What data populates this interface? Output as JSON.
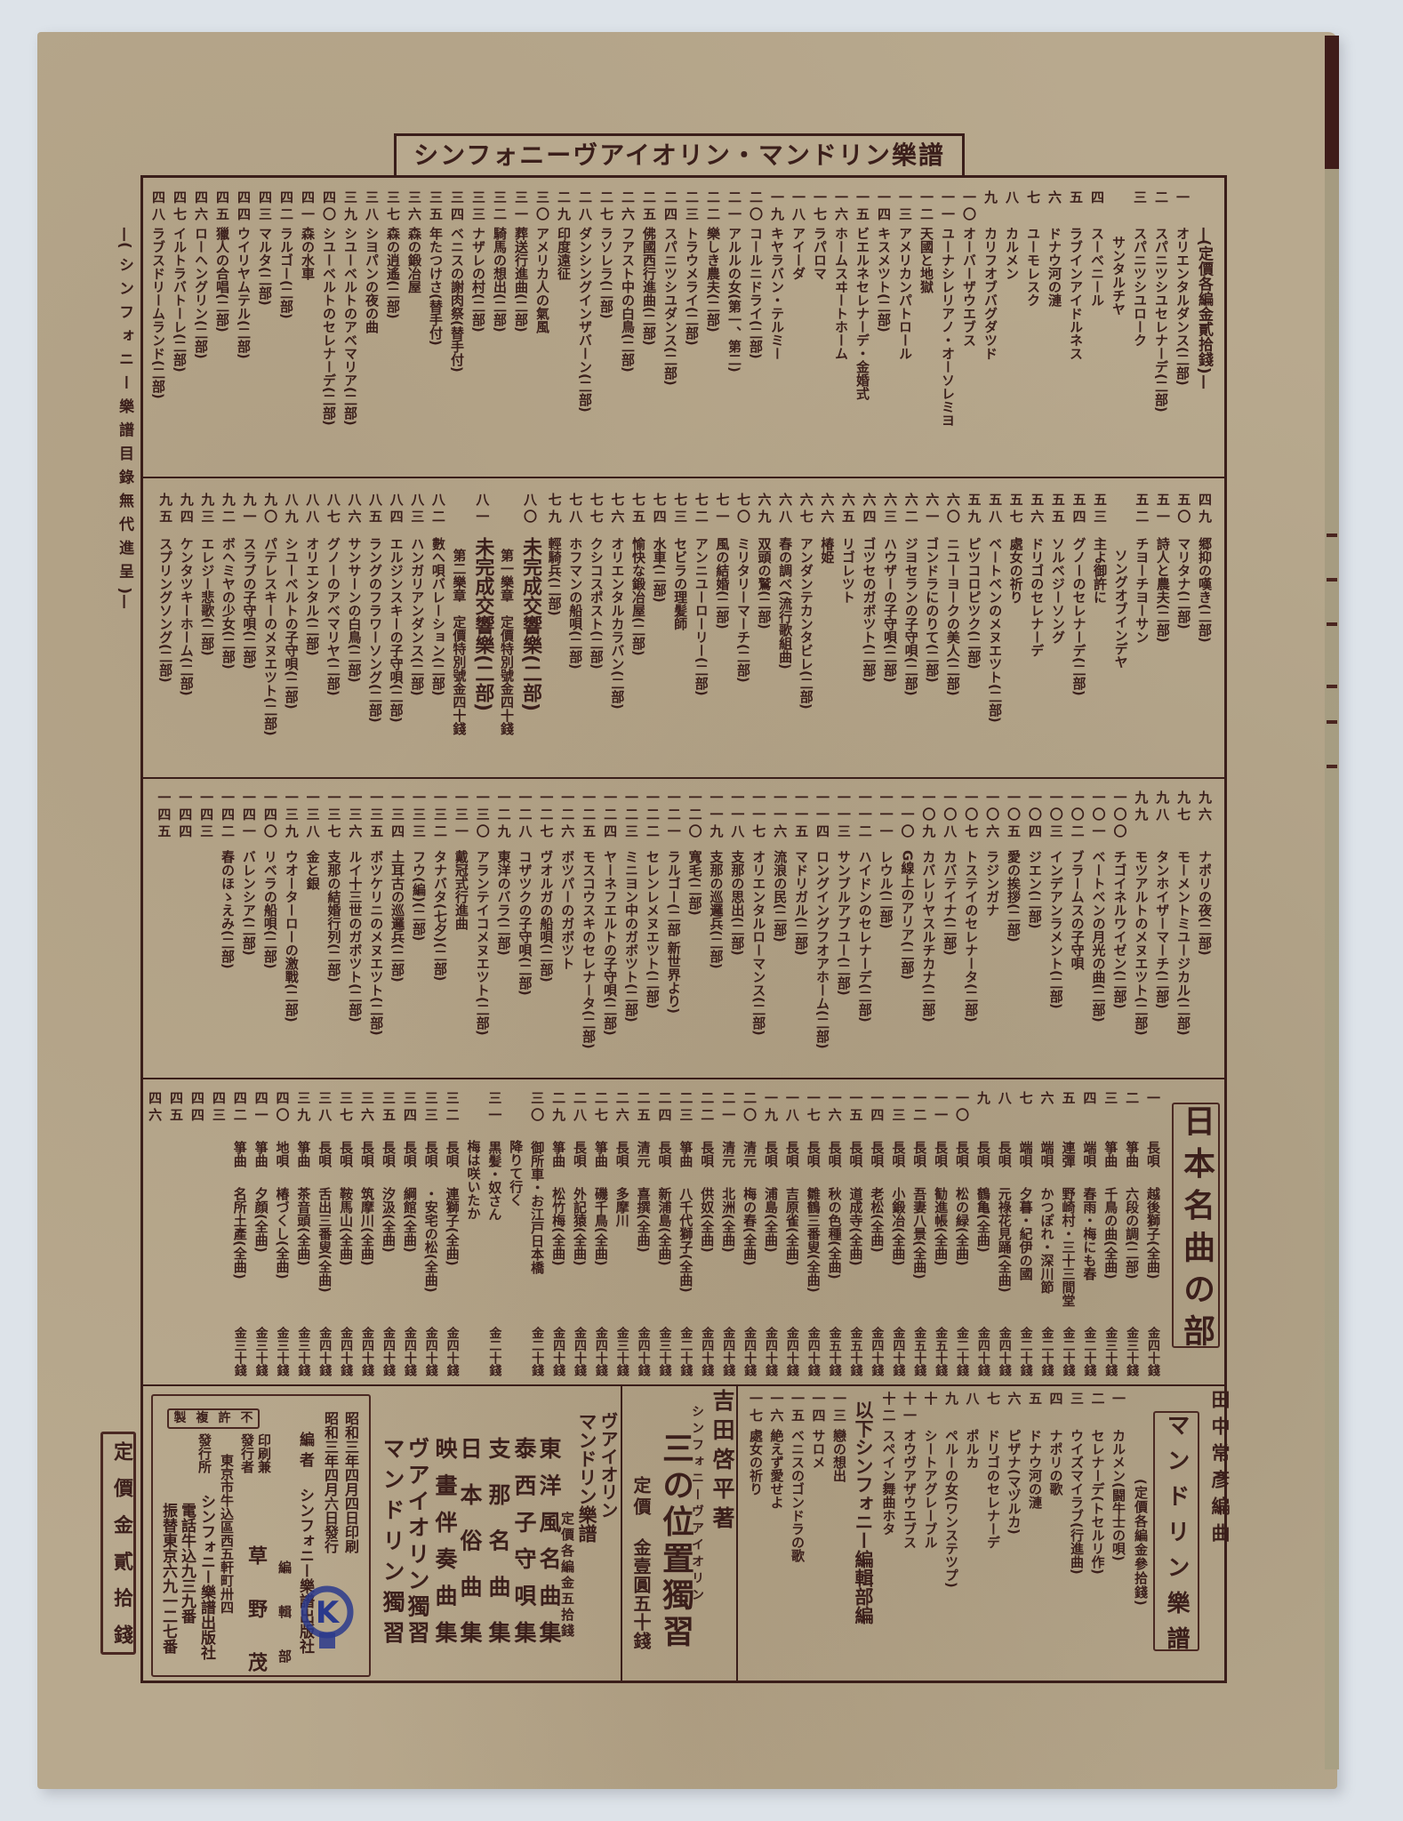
{
  "header": {
    "title": "シンフォニーヴアイオリン・マンドリン樂譜"
  },
  "margin_note": "—(シンフォニー樂譜目錄無代進呈)—",
  "section1": {
    "price_note": "(定價各編金貳拾錢)",
    "items": [
      {
        "no": "一",
        "title": "オリエンタルダンス(二部)"
      },
      {
        "no": "二",
        "title": "スパニツシユセレナーデ(二部)"
      },
      {
        "no": "三",
        "title": "スパニツシユローク",
        "sub": "サンタルチヤ"
      },
      {
        "no": "四",
        "title": "スーベニール"
      },
      {
        "no": "五",
        "title": "ラブインアイドルネス"
      },
      {
        "no": "六",
        "title": "ドナウ河の漣"
      },
      {
        "no": "七",
        "title": "ユーモレスク"
      },
      {
        "no": "八",
        "title": "カルメン"
      },
      {
        "no": "九",
        "title": "カリフオブバグダツド"
      },
      {
        "no": "一〇",
        "title": "オーバーザウエブス"
      },
      {
        "no": "一一",
        "title": "ユーナシレリアノ・オーソレミヨ"
      },
      {
        "no": "一二",
        "title": "天國と地獄"
      },
      {
        "no": "一三",
        "title": "アメリカンパトロール"
      },
      {
        "no": "一四",
        "title": "キスメツト(二部)"
      },
      {
        "no": "一五",
        "title": "ビエルネセレナーデ・金婚式"
      },
      {
        "no": "一六",
        "title": "ホームスヰートホーム"
      },
      {
        "no": "一七",
        "title": "ラパロマ"
      },
      {
        "no": "一八",
        "title": "アイーダ"
      },
      {
        "no": "一九",
        "title": "キヤラバン・テルミー"
      },
      {
        "no": "二〇",
        "title": "コールニドライ(二部)"
      },
      {
        "no": "二一",
        "title": "アルルの女(第一、第二)"
      },
      {
        "no": "二二",
        "title": "樂しき農夫(二部)"
      },
      {
        "no": "二三",
        "title": "トラウメライ(二部)"
      },
      {
        "no": "二四",
        "title": "スパニツシユダンス(二部)"
      },
      {
        "no": "二五",
        "title": "佛國西行進曲(二部)"
      },
      {
        "no": "二六",
        "title": "フアスト中の白鳥(二部)"
      },
      {
        "no": "二七",
        "title": "ラソレラ(二部)"
      },
      {
        "no": "二八",
        "title": "ダンシングインザバーン(二部)"
      },
      {
        "no": "二九",
        "title": "印度遠征"
      },
      {
        "no": "三〇",
        "title": "アメリカ人の氣風"
      },
      {
        "no": "三一",
        "title": "葬送行進曲(二部)"
      },
      {
        "no": "三二",
        "title": "騎馬の想出(二部)"
      },
      {
        "no": "三三",
        "title": "ナザレの村(二部)"
      },
      {
        "no": "三四",
        "title": "ベニスの謝肉祭(替手付)"
      },
      {
        "no": "三五",
        "title": "年たつけさ(替手付)"
      },
      {
        "no": "三六",
        "title": "森の鍛冶屋"
      },
      {
        "no": "三七",
        "title": "森の逍遙(二部)"
      },
      {
        "no": "三八",
        "title": "シヨパンの夜の曲"
      },
      {
        "no": "三九",
        "title": "シユーベルトのアベマリア(二部)"
      },
      {
        "no": "四〇",
        "title": "シユーベルトのセレナーデ(二部)"
      },
      {
        "no": "四一",
        "title": "森の水車"
      },
      {
        "no": "四二",
        "title": "ラルゴー(二部)"
      },
      {
        "no": "四三",
        "title": "マルタ(二部)"
      },
      {
        "no": "四四",
        "title": "ウイリヤムテル(二部)"
      },
      {
        "no": "四五",
        "title": "獵人の合唱(二部)"
      },
      {
        "no": "四六",
        "title": "ローヘングリン(二部)"
      },
      {
        "no": "四七",
        "title": "イルトラバトーレ(二部)"
      },
      {
        "no": "四八",
        "title": "ラブスドリームランド(二部)"
      }
    ]
  },
  "section2": {
    "items": [
      {
        "no": "四九",
        "title": "郷抑の嘆き(二部)"
      },
      {
        "no": "五〇",
        "title": "マリタナ(二部)"
      },
      {
        "no": "五一",
        "title": "詩人と農夫(二部)"
      },
      {
        "no": "五二",
        "title": "チヨーチヨーサン",
        "sub": "ソングオブインデヤ"
      },
      {
        "no": "五三",
        "title": "主よ御許に"
      },
      {
        "no": "五四",
        "title": "グノーのセレナーデ(二部)"
      },
      {
        "no": "五五",
        "title": "ソルベジーソング"
      },
      {
        "no": "五六",
        "title": "ドリゴのセレナーデ"
      },
      {
        "no": "五七",
        "title": "處女の祈り"
      },
      {
        "no": "五八",
        "title": "ベートベンのメヌエツト(二部)"
      },
      {
        "no": "五九",
        "title": "ピツコロピツク(二部)"
      },
      {
        "no": "六〇",
        "title": "ニユーヨークの美人(二部)"
      },
      {
        "no": "六一",
        "title": "ゴンドラにのりて(二部)"
      },
      {
        "no": "六二",
        "title": "ジヨセランの子守唄(二部)"
      },
      {
        "no": "六三",
        "title": "ハウザーの子守唄(二部)"
      },
      {
        "no": "六四",
        "title": "ゴツセのガボツト(二部)"
      },
      {
        "no": "六五",
        "title": "リゴレツト"
      },
      {
        "no": "六六",
        "title": "椿姫"
      },
      {
        "no": "六七",
        "title": "アンダンテカンタビレ(二部)"
      },
      {
        "no": "六八",
        "title": "春の調べ(流行歌組曲)"
      },
      {
        "no": "六九",
        "title": "双頭の鷲(二部)"
      },
      {
        "no": "七〇",
        "title": "ミリタリーマーチ(二部)"
      },
      {
        "no": "七一",
        "title": "風の結婚(二部)"
      },
      {
        "no": "七二",
        "title": "アンニユーローリー(二部)"
      },
      {
        "no": "七三",
        "title": "セビラの理髪師"
      },
      {
        "no": "七四",
        "title": "水車(二部)"
      },
      {
        "no": "七五",
        "title": "愉快な鍛冶屋(二部)"
      },
      {
        "no": "七六",
        "title": "オリエンタルカラバン(二部)"
      },
      {
        "no": "七七",
        "title": "クシコスポスト(二部)"
      },
      {
        "no": "七八",
        "title": "ホフマンの船唄(二部)"
      },
      {
        "no": "七九",
        "title": "輕騎兵(二部)"
      },
      {
        "no": "八〇",
        "title": "未完成交響樂(二部)",
        "big": true,
        "sub": "第一樂章　定價特別號金四十錢"
      },
      {
        "no": "八一",
        "title": "未完成交響樂(二部)",
        "big": true,
        "sub": "第二樂章　定價特別號金四十錢"
      },
      {
        "no": "八二",
        "title": "數へ唄バレーション(二部)"
      },
      {
        "no": "八三",
        "title": "ハンガリアンダンス(二部)"
      },
      {
        "no": "八四",
        "title": "エルジンスキーの子守唄(二部)"
      },
      {
        "no": "八五",
        "title": "ラングのフラワーソング(二部)"
      },
      {
        "no": "八六",
        "title": "サンサーンの白鳥(二部)"
      },
      {
        "no": "八七",
        "title": "グノーのアベマリヤ(二部)"
      },
      {
        "no": "八八",
        "title": "オリエンタル(二部)"
      },
      {
        "no": "八九",
        "title": "シユーベルトの子守唄(二部)"
      },
      {
        "no": "九〇",
        "title": "パテレスキーのメヌエツト(二部)"
      },
      {
        "no": "九一",
        "title": "スラブの子守唄(二部)"
      },
      {
        "no": "九二",
        "title": "ボヘミヤの少女(二部)"
      },
      {
        "no": "九三",
        "title": "エレジー悲歌(二部)"
      },
      {
        "no": "九四",
        "title": "ケンタツキーホーム(二部)"
      },
      {
        "no": "九五",
        "title": "スプリングソング(二部)"
      }
    ]
  },
  "section3": {
    "items": [
      {
        "no": "九六",
        "title": "ナポリの夜(二部)"
      },
      {
        "no": "九七",
        "title": "モーメントミユージカル(二部)"
      },
      {
        "no": "九八",
        "title": "タンホイザーマーチ(二部)"
      },
      {
        "no": "九九",
        "title": "モツアルトのメヌエツト(二部)"
      },
      {
        "no": "一〇〇",
        "title": "チゴイネルワイゼン(二部)"
      },
      {
        "no": "一〇一",
        "title": "ベートベンの月光の曲(二部)"
      },
      {
        "no": "一〇二",
        "title": "ブラームスの子守唄"
      },
      {
        "no": "一〇三",
        "title": "インデアンラメント(二部)"
      },
      {
        "no": "一〇四",
        "title": "ジエン(二部)"
      },
      {
        "no": "一〇五",
        "title": "愛の挨拶(二部)"
      },
      {
        "no": "一〇六",
        "title": "ラジンガナ"
      },
      {
        "no": "一〇七",
        "title": "トステイのセレナータ(二部)"
      },
      {
        "no": "一〇八",
        "title": "カバテイナ(二部)"
      },
      {
        "no": "一〇九",
        "title": "カバレリヤスルチカナ(二部)"
      },
      {
        "no": "一一〇",
        "title": "G線上のアリア(二部)"
      },
      {
        "no": "一一一",
        "title": "レウル(二部)"
      },
      {
        "no": "一一二",
        "title": "ハイドンのセレナーデ(二部)"
      },
      {
        "no": "一一三",
        "title": "サンブルアブユー(二部)"
      },
      {
        "no": "一一四",
        "title": "ロングイングフオアホーム(二部)"
      },
      {
        "no": "一一五",
        "title": "マドリガル(二部)"
      },
      {
        "no": "一一六",
        "title": "流浪の民(二部)"
      },
      {
        "no": "一一七",
        "title": "オリエンタルローマンス(二部)"
      },
      {
        "no": "一一八",
        "title": "支那の思出(二部)"
      },
      {
        "no": "一一九",
        "title": "支那の巡邏兵(二部)"
      },
      {
        "no": "一二〇",
        "title": "寬毛(二部)"
      },
      {
        "no": "一二一",
        "title": "ラルゴー(二部 新世界より)"
      },
      {
        "no": "一二二",
        "title": "セレンレメヌエツト(二部)"
      },
      {
        "no": "一二三",
        "title": "ミニヨン中のガボツト(二部)"
      },
      {
        "no": "一二四",
        "title": "ヤーネフエルトの子守唄(二部)"
      },
      {
        "no": "一二五",
        "title": "モスコウスキのセレナータ(二部)"
      },
      {
        "no": "一二六",
        "title": "ボツパーのガボツト"
      },
      {
        "no": "一二七",
        "title": "ヴオルガの船唄(二部)"
      },
      {
        "no": "一二八",
        "title": "コザツクの子守唄(二部)"
      },
      {
        "no": "一二九",
        "title": "東洋のバラ(二部)"
      },
      {
        "no": "一三〇",
        "title": "アランテイコメヌエツト(二部)"
      },
      {
        "no": "一三一",
        "title": "戴冠式行進曲"
      },
      {
        "no": "一三二",
        "title": "タナバタ(七夕)(二部)"
      },
      {
        "no": "一三三",
        "title": "フウ(編)(二部)"
      },
      {
        "no": "一三四",
        "title": "土耳古の巡邏兵(二部)"
      },
      {
        "no": "一三五",
        "title": "ボツケリニのメヌエツト(二部)"
      },
      {
        "no": "一三六",
        "title": "ルイ十三世のガボツト(二部)"
      },
      {
        "no": "一三七",
        "title": "支那の結婚行列(二部)"
      },
      {
        "no": "一三八",
        "title": "金と銀"
      },
      {
        "no": "一三九",
        "title": "ウオーターローの激戰(二部)"
      },
      {
        "no": "一四〇",
        "title": "リベラの船唄(二部)"
      },
      {
        "no": "一四一",
        "title": "バレンシア(二部)"
      },
      {
        "no": "一四二",
        "title": "春のほゝえみ(二部)"
      },
      {
        "no": "一四三",
        "title": ""
      },
      {
        "no": "一四四",
        "title": ""
      },
      {
        "no": "一四五",
        "title": ""
      }
    ]
  },
  "japanese": {
    "heading": "日本名曲の部",
    "items": [
      {
        "no": "一",
        "genre": "長唄",
        "title": "越後獅子(全曲)",
        "price": "金四十錢"
      },
      {
        "no": "二",
        "genre": "箏曲",
        "title": "六段の調(二部)",
        "price": "金三十錢"
      },
      {
        "no": "三",
        "genre": "箏曲",
        "title": "千鳥の曲(全曲)",
        "price": "金三十錢"
      },
      {
        "no": "四",
        "genre": "端唄",
        "title": "春雨・梅にも春",
        "price": "金二十錢"
      },
      {
        "no": "五",
        "genre": "連彈",
        "title": "野崎村・三十三間堂",
        "price": "金二十錢"
      },
      {
        "no": "六",
        "genre": "端唄",
        "title": "かつぽれ・深川節",
        "price": "金二十錢"
      },
      {
        "no": "七",
        "genre": "端唄",
        "title": "夕暮・紀伊の國",
        "price": "金二十錢"
      },
      {
        "no": "八",
        "genre": "長唄",
        "title": "元祿花見踊(全曲)",
        "price": "金四十錢"
      },
      {
        "no": "九",
        "genre": "長唄",
        "title": "鶴亀(全曲)",
        "price": "金四十錢"
      },
      {
        "no": "一〇",
        "genre": "長唄",
        "title": "松の緑(全曲)",
        "price": "金二十錢"
      },
      {
        "no": "一一",
        "genre": "長唄",
        "title": "勧進帳(全曲)",
        "price": "金五十錢"
      },
      {
        "no": "一二",
        "genre": "長唄",
        "title": "吾妻八景(全曲)",
        "price": "金五十錢"
      },
      {
        "no": "一三",
        "genre": "長唄",
        "title": "小鍛冶(全曲)",
        "price": "金四十錢"
      },
      {
        "no": "一四",
        "genre": "長唄",
        "title": "老松(全曲)",
        "price": "金四十錢"
      },
      {
        "no": "一五",
        "genre": "長唄",
        "title": "道成寺(全曲)",
        "price": "金五十錢"
      },
      {
        "no": "一六",
        "genre": "長唄",
        "title": "秋の色種(全曲)",
        "price": "金五十錢"
      },
      {
        "no": "一七",
        "genre": "長唄",
        "title": "雛鶴三番叟(全曲)",
        "price": "金四十錢"
      },
      {
        "no": "一八",
        "genre": "長唄",
        "title": "吉原雀(全曲)",
        "price": "金四十錢"
      },
      {
        "no": "一九",
        "genre": "長唄",
        "title": "浦島(全曲)",
        "price": "金四十錢"
      },
      {
        "no": "二〇",
        "genre": "清元",
        "title": "梅の春(全曲)",
        "price": "金四十錢"
      },
      {
        "no": "二一",
        "genre": "清元",
        "title": "北洲(全曲)",
        "price": "金四十錢"
      },
      {
        "no": "二二",
        "genre": "長唄",
        "title": "供奴(全曲)",
        "price": "金四十錢"
      },
      {
        "no": "二三",
        "genre": "箏曲",
        "title": "八千代獅子(全曲)",
        "price": "金二十錢"
      },
      {
        "no": "二四",
        "genre": "長唄",
        "title": "新浦島(全曲)",
        "price": "金三十錢"
      },
      {
        "no": "二五",
        "genre": "清元",
        "title": "喜撰(全曲)",
        "price": "金四十錢"
      },
      {
        "no": "二六",
        "genre": "長唄",
        "title": "多摩川",
        "price": "金三十錢"
      },
      {
        "no": "二七",
        "genre": "箏曲",
        "title": "磯千鳥(全曲)",
        "price": "金四十錢"
      },
      {
        "no": "二八",
        "genre": "長唄",
        "title": "外記猿(全曲)",
        "price": "金四十錢"
      },
      {
        "no": "二九",
        "genre": "箏曲",
        "title": "松竹梅(全曲)",
        "price": "金四十錢"
      },
      {
        "no": "三〇",
        "genre": "",
        "title": "御所車・お江戸日本橋",
        "sub": "降りて行く",
        "price": "金二十錢"
      },
      {
        "no": "三一",
        "genre": "",
        "title": "黒髪・奴さん",
        "sub": "梅は咲いたか",
        "price": "金二十錢"
      },
      {
        "no": "三二",
        "genre": "長唄",
        "title": "連獅子(全曲)",
        "price": "金四十錢"
      },
      {
        "no": "三三",
        "genre": "長唄",
        "title": "・安宅の松(全曲)",
        "price": "金四十錢"
      },
      {
        "no": "三四",
        "genre": "長唄",
        "title": "綱館(全曲)",
        "price": "金四十錢"
      },
      {
        "no": "三五",
        "genre": "長唄",
        "title": "汐汲(全曲)",
        "price": "金四十錢"
      },
      {
        "no": "三六",
        "genre": "長唄",
        "title": "筑摩川(全曲)",
        "price": "金四十錢"
      },
      {
        "no": "三七",
        "genre": "長唄",
        "title": "鞍馬山(全曲)",
        "price": "金四十錢"
      },
      {
        "no": "三八",
        "genre": "長唄",
        "title": "舌出三番叟(全曲)",
        "price": "金四十錢"
      },
      {
        "no": "三九",
        "genre": "箏曲",
        "title": "茶音頭(全曲)",
        "price": "金三十錢"
      },
      {
        "no": "四〇",
        "genre": "地唄",
        "title": "椿づくし(全曲)",
        "price": "金三十錢"
      },
      {
        "no": "四一",
        "genre": "箏曲",
        "title": "夕顔(全曲)",
        "price": "金三十錢"
      },
      {
        "no": "四二",
        "genre": "箏曲",
        "title": "名所土產(全曲)",
        "price": "金三十錢"
      },
      {
        "no": "四三",
        "genre": "",
        "title": "",
        "price": ""
      },
      {
        "no": "四四",
        "genre": "",
        "title": "",
        "price": ""
      },
      {
        "no": "四五",
        "genre": "",
        "title": "",
        "price": ""
      },
      {
        "no": "四六",
        "genre": "",
        "title": "",
        "price": ""
      }
    ]
  },
  "mandolin": {
    "arranger": "田中常彥編曲",
    "heading": "マンドリン樂譜",
    "price_note": "(定價各編金參拾錢)",
    "editorial_heading": "以下シンフォニー編輯部編",
    "items": [
      {
        "no": "一",
        "title": "カルメン(闘牛士の唄)"
      },
      {
        "no": "二",
        "title": "セレナーデ(トセルリ作)"
      },
      {
        "no": "三",
        "title": "ウイズマイラブ(行進曲)"
      },
      {
        "no": "四",
        "title": "ナポリの歌"
      },
      {
        "no": "五",
        "title": "ドナウ河の漣"
      },
      {
        "no": "六",
        "title": "ピザナ(マヅルカ)"
      },
      {
        "no": "七",
        "title": "ドリゴのセレナーデ"
      },
      {
        "no": "八",
        "title": "ポルカ"
      },
      {
        "no": "九",
        "title": "ペルーの女(ワンステツプ)"
      },
      {
        "no": "十",
        "title": "シートアグレーブル"
      },
      {
        "no": "十一",
        "title": "オウヴアザウエブス"
      },
      {
        "no": "十二",
        "title": "スペイン舞曲ホタ"
      },
      {
        "no": "一三",
        "title": "戀の想出"
      },
      {
        "no": "一四",
        "title": "サロメ"
      },
      {
        "no": "一五",
        "title": "ベニスのゴンドラの歌"
      },
      {
        "no": "一六",
        "title": "絶えず愛せよ"
      },
      {
        "no": "一七",
        "title": "處女の祈り"
      }
    ]
  },
  "yoshida": {
    "author": "吉田啓平著",
    "series": "シンフォニーヴアイオリン",
    "title": "三の位置獨習",
    "price_label": "定價",
    "price": "金壹圓五十錢"
  },
  "violin_mandolin": {
    "heading_1": "ヴアイオリン",
    "heading_2": "マンドリン樂譜",
    "price_note": "定價各編金五拾錢",
    "books": [
      "東洋風名曲集",
      "泰西子守唄集",
      "支那名曲集",
      "日本俗曲集",
      "映畫伴奏曲集",
      "ヴアイオリン獨習",
      "マンドリン獨習"
    ]
  },
  "colophon": {
    "notice": "不許複製",
    "printed": "昭和三年四月四日印刷",
    "published": "昭和三年四月六日發行",
    "editor_label": "編者",
    "editor": "シンフォニー樂譜出版社",
    "editor_dept": "編輯部",
    "printer_label_1": "印刷兼",
    "printer_label_2": "發行者",
    "printer": "草野茂",
    "address": "東京市牛込區西五軒町卅四",
    "publisher_label": "發行所",
    "publisher": "シンフォニー樂譜出版社",
    "phone": "電話牛込九三九番",
    "transfer": "振替東京六九一二七番",
    "stamp": "K"
  },
  "cover_price": "定價金貳拾錢",
  "colors": {
    "paper": "#b8a98e",
    "ink": "#3b1f1b",
    "stamp": "#2b3a8c",
    "background": "#dde3e9"
  }
}
